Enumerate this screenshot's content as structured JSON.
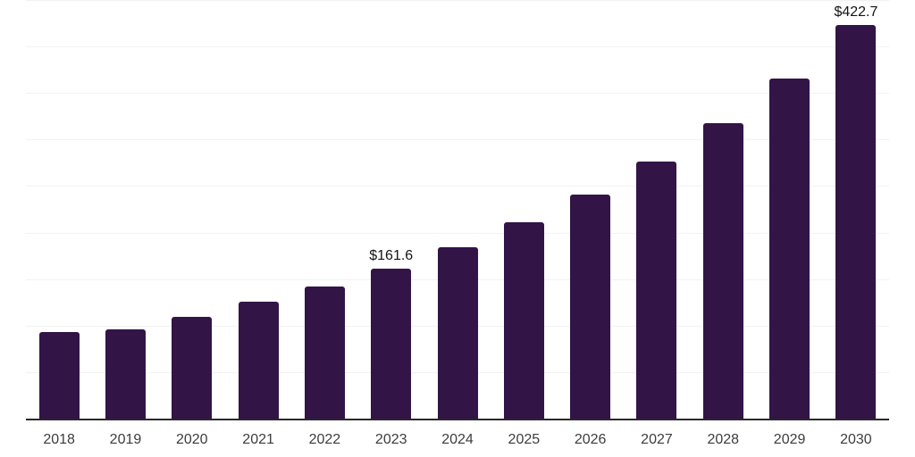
{
  "chart_data": {
    "type": "bar",
    "categories": [
      "2018",
      "2019",
      "2020",
      "2021",
      "2022",
      "2023",
      "2024",
      "2025",
      "2026",
      "2027",
      "2028",
      "2029",
      "2030"
    ],
    "values": [
      93.4,
      95.8,
      109.8,
      125.6,
      142.2,
      161.6,
      184.1,
      211.3,
      240.8,
      276.4,
      318.0,
      366.0,
      422.7
    ],
    "value_labels": [
      {
        "index": 5,
        "text": "$161.6"
      },
      {
        "index": 12,
        "text": "$422.7"
      }
    ],
    "ylim": [
      0,
      450
    ],
    "grid_step": 50,
    "grid": "horizontal-only",
    "legend_position": "none",
    "y_axis_tick_labels_visible": false,
    "colors": {
      "bar": "#321447",
      "grid": "#f2f2f2",
      "axis": "#2a2a2a",
      "tick_label": "#3d3d3d",
      "value_label": "#141414",
      "background": "#ffffff"
    }
  }
}
